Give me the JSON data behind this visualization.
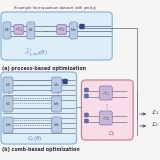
{
  "bg_color": "#f5f5f5",
  "title_top": "th sample from quantum dataset with prob $p_j$",
  "label_a": "(a) process-based optimization",
  "label_b": "(b) comb-based optimization",
  "box_a_edge": "#8ab8d8",
  "box_a_face": "#ddeef8",
  "box_b_edge": "#8ab8d8",
  "box_b_face": "#ddeef8",
  "box_omega_edge": "#d08090",
  "box_omega_face": "#f8dde8",
  "gate_v_face": "#b8cce4",
  "gate_v_edge": "#8090c0",
  "gate_n_face": "#c8b8d8",
  "gate_n_edge": "#9070b0",
  "wire_color": "#555566",
  "dot_color": "#334488",
  "label_a_color": "#5588cc",
  "label_b_color": "#5588cc",
  "omega_label_color": "#cc5577",
  "arrow_color": "#667788",
  "loss_color": "#334455"
}
